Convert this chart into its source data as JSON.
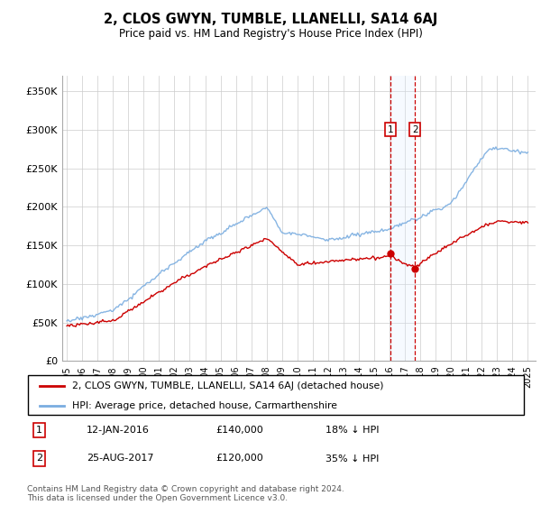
{
  "title": "2, CLOS GWYN, TUMBLE, LLANELLI, SA14 6AJ",
  "subtitle": "Price paid vs. HM Land Registry's House Price Index (HPI)",
  "legend_line1": "2, CLOS GWYN, TUMBLE, LLANELLI, SA14 6AJ (detached house)",
  "legend_line2": "HPI: Average price, detached house, Carmarthenshire",
  "transaction1_date": "12-JAN-2016",
  "transaction1_price": "£140,000",
  "transaction1_hpi": "18% ↓ HPI",
  "transaction2_date": "25-AUG-2017",
  "transaction2_price": "£120,000",
  "transaction2_hpi": "35% ↓ HPI",
  "footer": "Contains HM Land Registry data © Crown copyright and database right 2024.\nThis data is licensed under the Open Government Licence v3.0.",
  "ytick_labels": [
    "£0",
    "£50K",
    "£100K",
    "£150K",
    "£200K",
    "£250K",
    "£300K",
    "£350K"
  ],
  "ytick_values": [
    0,
    50000,
    100000,
    150000,
    200000,
    250000,
    300000,
    350000
  ],
  "ylim": [
    0,
    370000
  ],
  "transaction1_year": 2016.04,
  "transaction2_year": 2017.65,
  "t1_price": 140000,
  "t2_price": 120000,
  "red_color": "#cc0000",
  "blue_color": "#7aade0",
  "shading_color": "#ddeeff",
  "box_color": "#cc0000",
  "grid_color": "#cccccc",
  "background_color": "#ffffff"
}
